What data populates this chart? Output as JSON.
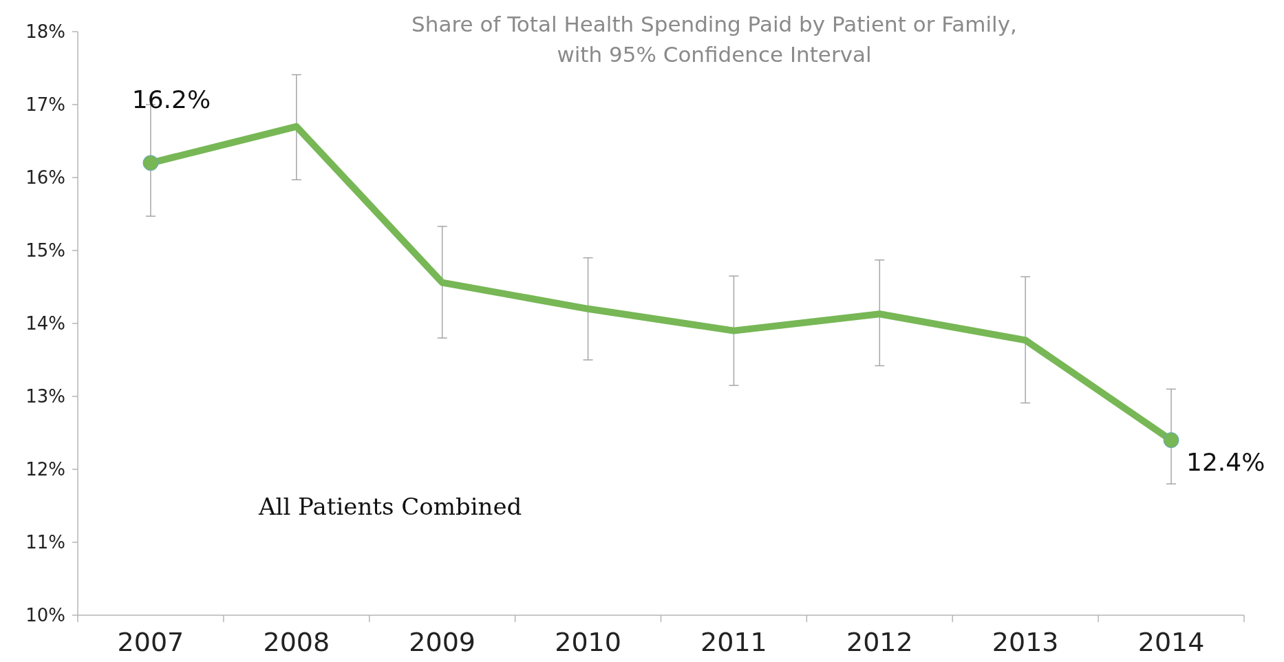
{
  "chart_data": {
    "type": "line",
    "title": "Share of Total Health Spending Paid by Patient or Family,\nwith 95% Confidence Interval",
    "categories": [
      "2007",
      "2008",
      "2009",
      "2010",
      "2011",
      "2012",
      "2013",
      "2014"
    ],
    "series": [
      {
        "color": "#77b755",
        "values": [
          16.2,
          16.7,
          14.56,
          14.2,
          13.9,
          14.13,
          13.77,
          12.4
        ],
        "errors": [
          [
            15.47,
            17.0
          ],
          [
            15.97,
            17.41
          ],
          [
            13.8,
            15.33
          ],
          [
            13.5,
            14.9
          ],
          [
            13.15,
            14.65
          ],
          [
            13.42,
            14.87
          ],
          [
            12.91,
            14.64
          ],
          [
            11.8,
            13.1
          ]
        ],
        "value_labels": [
          "16.2%",
          null,
          null,
          null,
          null,
          null,
          null,
          "12.4%"
        ]
      }
    ],
    "ylim": [
      10,
      18
    ],
    "yticks": [
      {
        "value": 10,
        "label": "10%"
      },
      {
        "value": 11,
        "label": "11%"
      },
      {
        "value": 12,
        "label": "12%"
      },
      {
        "value": 13,
        "label": "13%"
      },
      {
        "value": 14,
        "label": "14%"
      },
      {
        "value": 15,
        "label": "15%"
      },
      {
        "value": 16,
        "label": "16%"
      },
      {
        "value": 17,
        "label": "17%"
      },
      {
        "value": 18,
        "label": "18%"
      }
    ],
    "annotations": [
      "All Patients Combined"
    ],
    "grid": false
  }
}
